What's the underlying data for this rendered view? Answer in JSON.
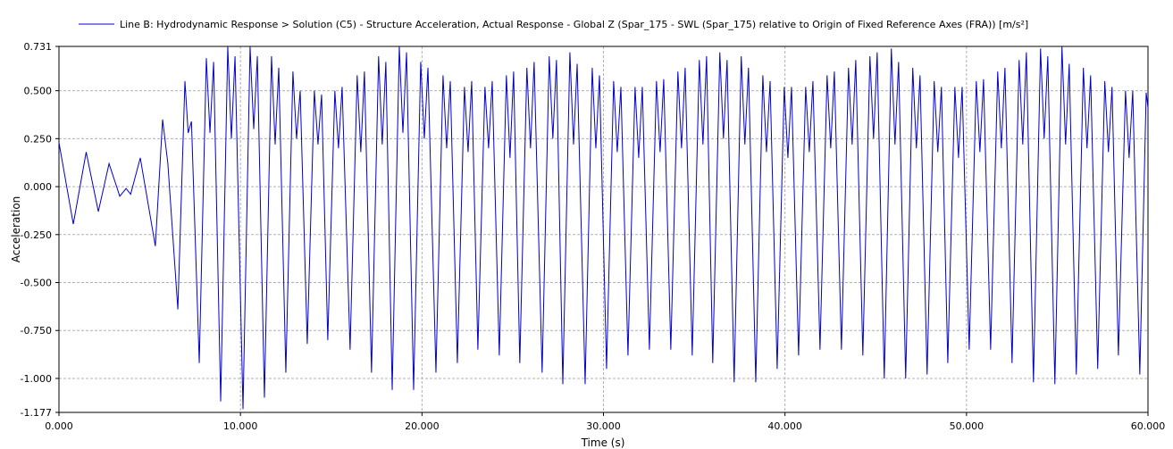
{
  "chart_data": {
    "type": "line",
    "x_label": "Time (s)",
    "y_label": "Acceleration",
    "series": [
      {
        "name": "Line B: Hydrodynamic Response > Solution (C5) - Structure Acceleration, Actual Response - Global Z (Spar_175 - SWL (Spar_175) relative to Origin of Fixed Reference Axes (FRA)) [m/s²]",
        "color": "#0000cc",
        "x": [
          0,
          0.79,
          1.5,
          2.17,
          2.76,
          3.35,
          3.7,
          3.95,
          4.48,
          5.31,
          5.71,
          6.0,
          6.55,
          6.94,
          7.12,
          7.3,
          7.73,
          8.12,
          8.32,
          8.52,
          8.91,
          9.3,
          9.5,
          9.7,
          10.14,
          10.53,
          10.73,
          10.93,
          11.32,
          11.71,
          11.91,
          12.11,
          12.5,
          12.89,
          13.09,
          13.29,
          13.68,
          14.07,
          14.27,
          14.47,
          14.81,
          15.2,
          15.4,
          15.6,
          16.04,
          16.43,
          16.63,
          16.83,
          17.22,
          17.61,
          17.81,
          18.01,
          18.36,
          18.75,
          18.95,
          19.15,
          19.54,
          19.93,
          20.13,
          20.33,
          20.77,
          21.16,
          21.36,
          21.56,
          21.95,
          22.34,
          22.54,
          22.74,
          23.08,
          23.47,
          23.67,
          23.87,
          24.26,
          24.65,
          24.85,
          25.05,
          25.39,
          25.78,
          25.98,
          26.18,
          26.62,
          27.01,
          27.21,
          27.41,
          27.76,
          28.15,
          28.35,
          28.55,
          28.99,
          29.38,
          29.58,
          29.78,
          30.17,
          30.56,
          30.76,
          30.96,
          31.35,
          31.74,
          31.94,
          32.14,
          32.53,
          32.92,
          33.12,
          33.32,
          33.71,
          34.1,
          34.3,
          34.5,
          34.89,
          35.28,
          35.48,
          35.68,
          36.02,
          36.41,
          36.61,
          36.81,
          37.2,
          37.59,
          37.79,
          37.99,
          38.39,
          38.78,
          38.98,
          39.18,
          39.57,
          39.96,
          40.16,
          40.36,
          40.75,
          41.14,
          41.34,
          41.54,
          41.93,
          42.32,
          42.52,
          42.72,
          43.11,
          43.5,
          43.7,
          43.9,
          44.29,
          44.68,
          44.88,
          45.08,
          45.47,
          45.86,
          46.06,
          46.26,
          46.65,
          47.04,
          47.24,
          47.44,
          47.83,
          48.22,
          48.42,
          48.62,
          48.97,
          49.36,
          49.56,
          49.76,
          50.15,
          50.54,
          50.74,
          50.94,
          51.33,
          51.72,
          51.92,
          52.12,
          52.51,
          52.9,
          53.1,
          53.3,
          53.69,
          54.08,
          54.28,
          54.48,
          54.87,
          55.26,
          55.46,
          55.66,
          56.05,
          56.44,
          56.64,
          56.84,
          57.23,
          57.62,
          57.82,
          58.02,
          58.37,
          58.76,
          58.96,
          59.16,
          59.55,
          59.9,
          60
        ],
        "values": [
          0.23,
          -0.195,
          0.18,
          -0.13,
          0.12,
          -0.05,
          -0.01,
          -0.04,
          0.15,
          -0.31,
          0.35,
          0.12,
          -0.64,
          0.55,
          0.28,
          0.34,
          -0.92,
          0.67,
          0.28,
          0.65,
          -1.12,
          0.73,
          0.25,
          0.68,
          -1.16,
          0.73,
          0.3,
          0.68,
          -1.1,
          0.68,
          0.22,
          0.62,
          -0.97,
          0.6,
          0.25,
          0.5,
          -0.82,
          0.5,
          0.22,
          0.48,
          -0.8,
          0.5,
          0.2,
          0.52,
          -0.85,
          0.58,
          0.18,
          0.6,
          -0.97,
          0.68,
          0.22,
          0.65,
          -1.06,
          0.73,
          0.28,
          0.7,
          -1.06,
          0.65,
          0.25,
          0.62,
          -0.97,
          0.58,
          0.2,
          0.55,
          -0.92,
          0.52,
          0.18,
          0.55,
          -0.85,
          0.52,
          0.2,
          0.55,
          -0.88,
          0.58,
          0.15,
          0.6,
          -0.92,
          0.62,
          0.2,
          0.65,
          -0.97,
          0.68,
          0.25,
          0.66,
          -1.03,
          0.7,
          0.22,
          0.64,
          -1.03,
          0.62,
          0.2,
          0.58,
          -0.95,
          0.55,
          0.18,
          0.52,
          -0.88,
          0.52,
          0.15,
          0.52,
          -0.85,
          0.55,
          0.18,
          0.56,
          -0.85,
          0.6,
          0.2,
          0.62,
          -0.88,
          0.66,
          0.22,
          0.68,
          -0.92,
          0.7,
          0.25,
          0.66,
          -1.02,
          0.68,
          0.22,
          0.62,
          -1.02,
          0.58,
          0.18,
          0.55,
          -0.95,
          0.52,
          0.15,
          0.52,
          -0.88,
          0.52,
          0.18,
          0.55,
          -0.85,
          0.58,
          0.2,
          0.6,
          -0.85,
          0.62,
          0.22,
          0.66,
          -0.88,
          0.68,
          0.25,
          0.7,
          -1.0,
          0.72,
          0.22,
          0.65,
          -1.0,
          0.62,
          0.2,
          0.58,
          -0.98,
          0.55,
          0.18,
          0.52,
          -0.92,
          0.52,
          0.15,
          0.52,
          -0.85,
          0.55,
          0.18,
          0.56,
          -0.85,
          0.6,
          0.2,
          0.62,
          -0.92,
          0.66,
          0.22,
          0.7,
          -1.02,
          0.72,
          0.25,
          0.68,
          -1.03,
          0.73,
          0.22,
          0.64,
          -0.98,
          0.62,
          0.2,
          0.58,
          -0.95,
          0.55,
          0.18,
          0.52,
          -0.88,
          0.5,
          0.15,
          0.5,
          -0.98,
          0.49,
          0.41
        ]
      }
    ],
    "xlim": [
      0,
      60
    ],
    "xticks": [
      {
        "value": 0,
        "label": "0.000"
      },
      {
        "value": 10,
        "label": "10.000"
      },
      {
        "value": 20,
        "label": "20.000"
      },
      {
        "value": 30,
        "label": "30.000"
      },
      {
        "value": 40,
        "label": "40.000"
      },
      {
        "value": 50,
        "label": "50.000"
      },
      {
        "value": 60,
        "label": "60.000"
      }
    ],
    "ylim": [
      -1.177,
      0.731
    ],
    "yticks": [
      0.731,
      {
        "value": 0.5,
        "label": "0.500"
      },
      {
        "value": 0.25,
        "label": "0.250"
      },
      {
        "value": 0,
        "label": "0.000"
      },
      {
        "value": -0.25,
        "label": "-0.250"
      },
      {
        "value": -0.5,
        "label": "-0.500"
      },
      {
        "value": -0.75,
        "label": "-0.750"
      },
      {
        "value": -1,
        "label": "-1.000"
      },
      -1.177
    ],
    "grid": true
  }
}
